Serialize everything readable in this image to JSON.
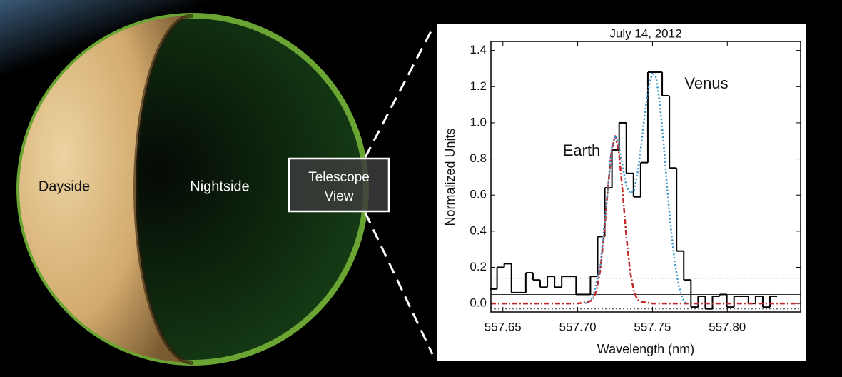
{
  "diagram": {
    "labels": {
      "dayside": "Dayside",
      "nightside": "Nightside",
      "telescope_view": [
        "Telescope",
        "View"
      ]
    }
  },
  "chart_data": {
    "type": "line",
    "title": "July 14, 2012",
    "x_label": "Wavelength (nm)",
    "y_label": "Normalized Units",
    "annotations": [
      "Earth",
      "Venus"
    ],
    "xlim": [
      557.642,
      557.849
    ],
    "ylim": [
      -0.047,
      1.45
    ],
    "xticks": [
      {
        "value": 557.65,
        "label": "557.65"
      },
      {
        "value": 557.7,
        "label": "557.70"
      },
      {
        "value": 557.75,
        "label": "557.75"
      },
      {
        "value": 557.8,
        "label": "557.80"
      }
    ],
    "yticks": [
      {
        "value": 0,
        "label": "0.0"
      },
      0.2,
      0.4,
      0.6,
      0.8,
      {
        "value": 1,
        "label": "1.0"
      },
      1.2,
      1.4
    ],
    "reference_lines": [
      {
        "value": 0.05,
        "style": "solid"
      },
      {
        "value": 0.14,
        "style": "dotted"
      },
      {
        "value": -0.03,
        "style": "dotted"
      }
    ],
    "series": [
      {
        "kind": "step",
        "color": "#000000",
        "bins": [
          557.6413,
          557.6461,
          557.6509,
          557.6557,
          557.6605,
          557.6653,
          557.6701,
          557.6749,
          557.6797,
          557.6845,
          557.6893,
          557.6941,
          557.6989,
          557.7037,
          557.7085,
          557.7133,
          557.7181,
          557.7229,
          557.7277,
          557.7325,
          557.7373,
          557.7421,
          557.7469,
          557.7517,
          557.7565,
          557.7613,
          557.7661,
          557.7709,
          557.7757,
          557.7805,
          557.7853,
          557.7901,
          557.7949,
          557.7997,
          557.8045,
          557.8093,
          557.8141,
          557.8189,
          557.8237,
          557.8285,
          557.8333
        ],
        "values": [
          0.08,
          0.2,
          0.22,
          0.06,
          0.06,
          0.17,
          0.13,
          0.09,
          0.15,
          0.09,
          0.15,
          0.15,
          0.05,
          0.05,
          0.15,
          0.37,
          0.64,
          0.85,
          1.0,
          0.72,
          0.59,
          0.78,
          1.28,
          1.28,
          1.15,
          0.75,
          0.29,
          0.13,
          -0.02,
          0.04,
          -0.03,
          0.04,
          0.05,
          -0.02,
          0.04,
          0.04,
          0.0,
          0.04,
          -0.02,
          0.04
        ]
      },
      {
        "kind": "line",
        "style": "dashdot",
        "color": "#c0282a",
        "x": [
          557.642,
          557.7,
          557.7075,
          557.71,
          557.7125,
          557.715,
          557.7175,
          557.72,
          557.7225,
          557.725,
          557.7275,
          557.73,
          557.7325,
          557.735,
          557.7375,
          557.74,
          557.7425,
          557.75,
          557.849
        ],
        "values": [
          0,
          0,
          0.01,
          0.02,
          0.07,
          0.18,
          0.37,
          0.62,
          0.84,
          0.93,
          0.84,
          0.62,
          0.37,
          0.18,
          0.07,
          0.02,
          0.01,
          0,
          0
        ]
      },
      {
        "kind": "line",
        "style": "dotted",
        "color": "#3a93c8",
        "x": [
          557.705,
          557.71,
          557.715,
          557.72,
          557.7225,
          557.725,
          557.7275,
          557.73,
          557.7325,
          557.735,
          557.7375,
          557.74,
          557.7425,
          557.745,
          557.7475,
          557.75,
          557.7525,
          557.755,
          557.7575,
          557.76,
          557.7625,
          557.765,
          557.7675,
          557.77,
          557.7725
        ],
        "values": [
          0.0,
          0.03,
          0.2,
          0.62,
          0.85,
          0.93,
          0.88,
          0.76,
          0.65,
          0.61,
          0.62,
          0.72,
          0.88,
          1.06,
          1.2,
          1.28,
          1.25,
          1.1,
          0.88,
          0.62,
          0.4,
          0.22,
          0.1,
          0.03,
          0.0
        ]
      }
    ]
  }
}
